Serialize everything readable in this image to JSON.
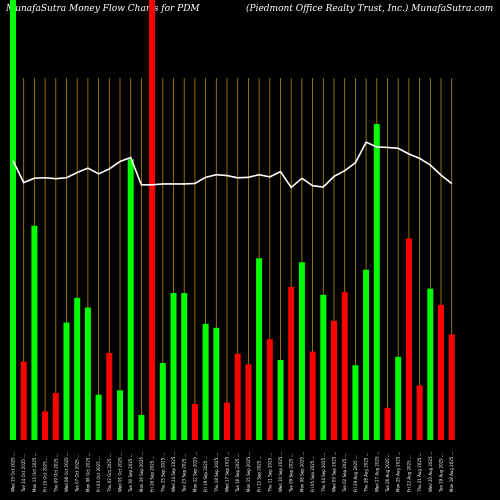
{
  "header": {
    "left_title": "MunafaSutra  Money Flow  Charts for PDM",
    "right_title": "(Piedmont Office    Realty Trust, Inc.) MunafaSutra.com"
  },
  "chart_data": {
    "type": "bar",
    "background": "#000000",
    "grid_color": "#b8860b",
    "line_color": "#ffffff",
    "up_color": "#00ff00",
    "down_color": "#ff0000",
    "ylim": [
      0,
      100
    ],
    "categories": [
      "Wed 15 Oct 2025 ...",
      "Tue 14 Oct 2025 ...",
      "Mon 13 Oct 2025 ...",
      "Fri 10 Oct 2025 ...",
      "Thu 09 Oct 2025 ...",
      "Wed 08 Oct 2025 ...",
      "Tue 07 Oct 2025 ...",
      "Mon 06 Oct 2025 ...",
      "Fri 03 Oct 2025 ...",
      "Thu 02 Oct 2025 ...",
      "Wed 01 Oct 2025 ...",
      "Tue 30 Sep 2025 ...",
      "Mon 29 Sep 2025 ...",
      "Fri 26 Sep 2025 ...",
      "Thu 25 Sep 2025 ...",
      "Wed 24 Sep 2025 ...",
      "Tue 23 Sep 2025 ...",
      "Mon 22 Sep 2025 ...",
      "Fri 19 Sep 2025 ...",
      "Thu 18 Sep 2025 ...",
      "Wed 17 Sep 2025 ...",
      "Tue 16 Sep 2025 ...",
      "Mon 15 Sep 2025 ...",
      "Fri 12 Sep 2025 ...",
      "Thu 11 Sep 2025 ...",
      "Wed 10 Sep 2025 ...",
      "Tue 09 Sep 2025 ...",
      "Mon 08 Sep 2025 ...",
      "Fri 05 Sep 2025 ...",
      "Thu 04 Sep 2025 ...",
      "Wed 03 Sep 2025 ...",
      "Tue 02 Sep 2025 ...",
      "Fri 29 Aug 2025 ...",
      "Thu 28 Aug 2025 ...",
      "Wed 27 Aug 2025 ...",
      "Tue 26 Aug 2025 ...",
      "Mon 25 Aug 2025 ...",
      "Fri 22 Aug 2025 ...",
      "Thu 21 Aug 2025 ...",
      "Wed 20 Aug 2025 ...",
      "Tue 19 Aug 2025 ...",
      "Mon 18 Aug 2025 ..."
    ],
    "series": [
      {
        "values": [
          100,
          17.8,
          48.7,
          6.5,
          10.7,
          26.7,
          32.3,
          30.1,
          10.3,
          19.8,
          11.3,
          63.8,
          5.7,
          100,
          17.5,
          33.4,
          33.4,
          8.2,
          26.4,
          25.5,
          8.5,
          19.6,
          17.2,
          41.3,
          22.9,
          18.2,
          34.8,
          40.4,
          20.1,
          33.0,
          27.1,
          33.6,
          17.0,
          38.7,
          71.8,
          7.3,
          18.9,
          45.8,
          12.4,
          34.4,
          30.7,
          24.0
        ],
        "colors": [
          "up",
          "down",
          "up",
          "down",
          "down",
          "up",
          "up",
          "up",
          "up",
          "down",
          "up",
          "up",
          "up",
          "down",
          "up",
          "up",
          "up",
          "down",
          "up",
          "up",
          "down",
          "down",
          "down",
          "up",
          "down",
          "up",
          "down",
          "up",
          "down",
          "up",
          "down",
          "down",
          "up",
          "up",
          "up",
          "down",
          "up",
          "down",
          "down",
          "up",
          "down",
          "down"
        ]
      },
      {
        "type": "line",
        "values": [
          63.5,
          58.5,
          59.5,
          59.6,
          59.4,
          59.6,
          60.8,
          61.8,
          60.5,
          61.6,
          63.3,
          64.2,
          58.0,
          58.0,
          58.2,
          58.2,
          58.2,
          58.3,
          59.7,
          60.3,
          60.1,
          59.6,
          59.7,
          60.3,
          59.8,
          61.0,
          57.4,
          59.5,
          57.8,
          57.5,
          59.9,
          61.2,
          63.0,
          67.7,
          66.6,
          66.5,
          66.3,
          65.0,
          64.0,
          62.5,
          60.2,
          58.3
        ]
      }
    ]
  }
}
